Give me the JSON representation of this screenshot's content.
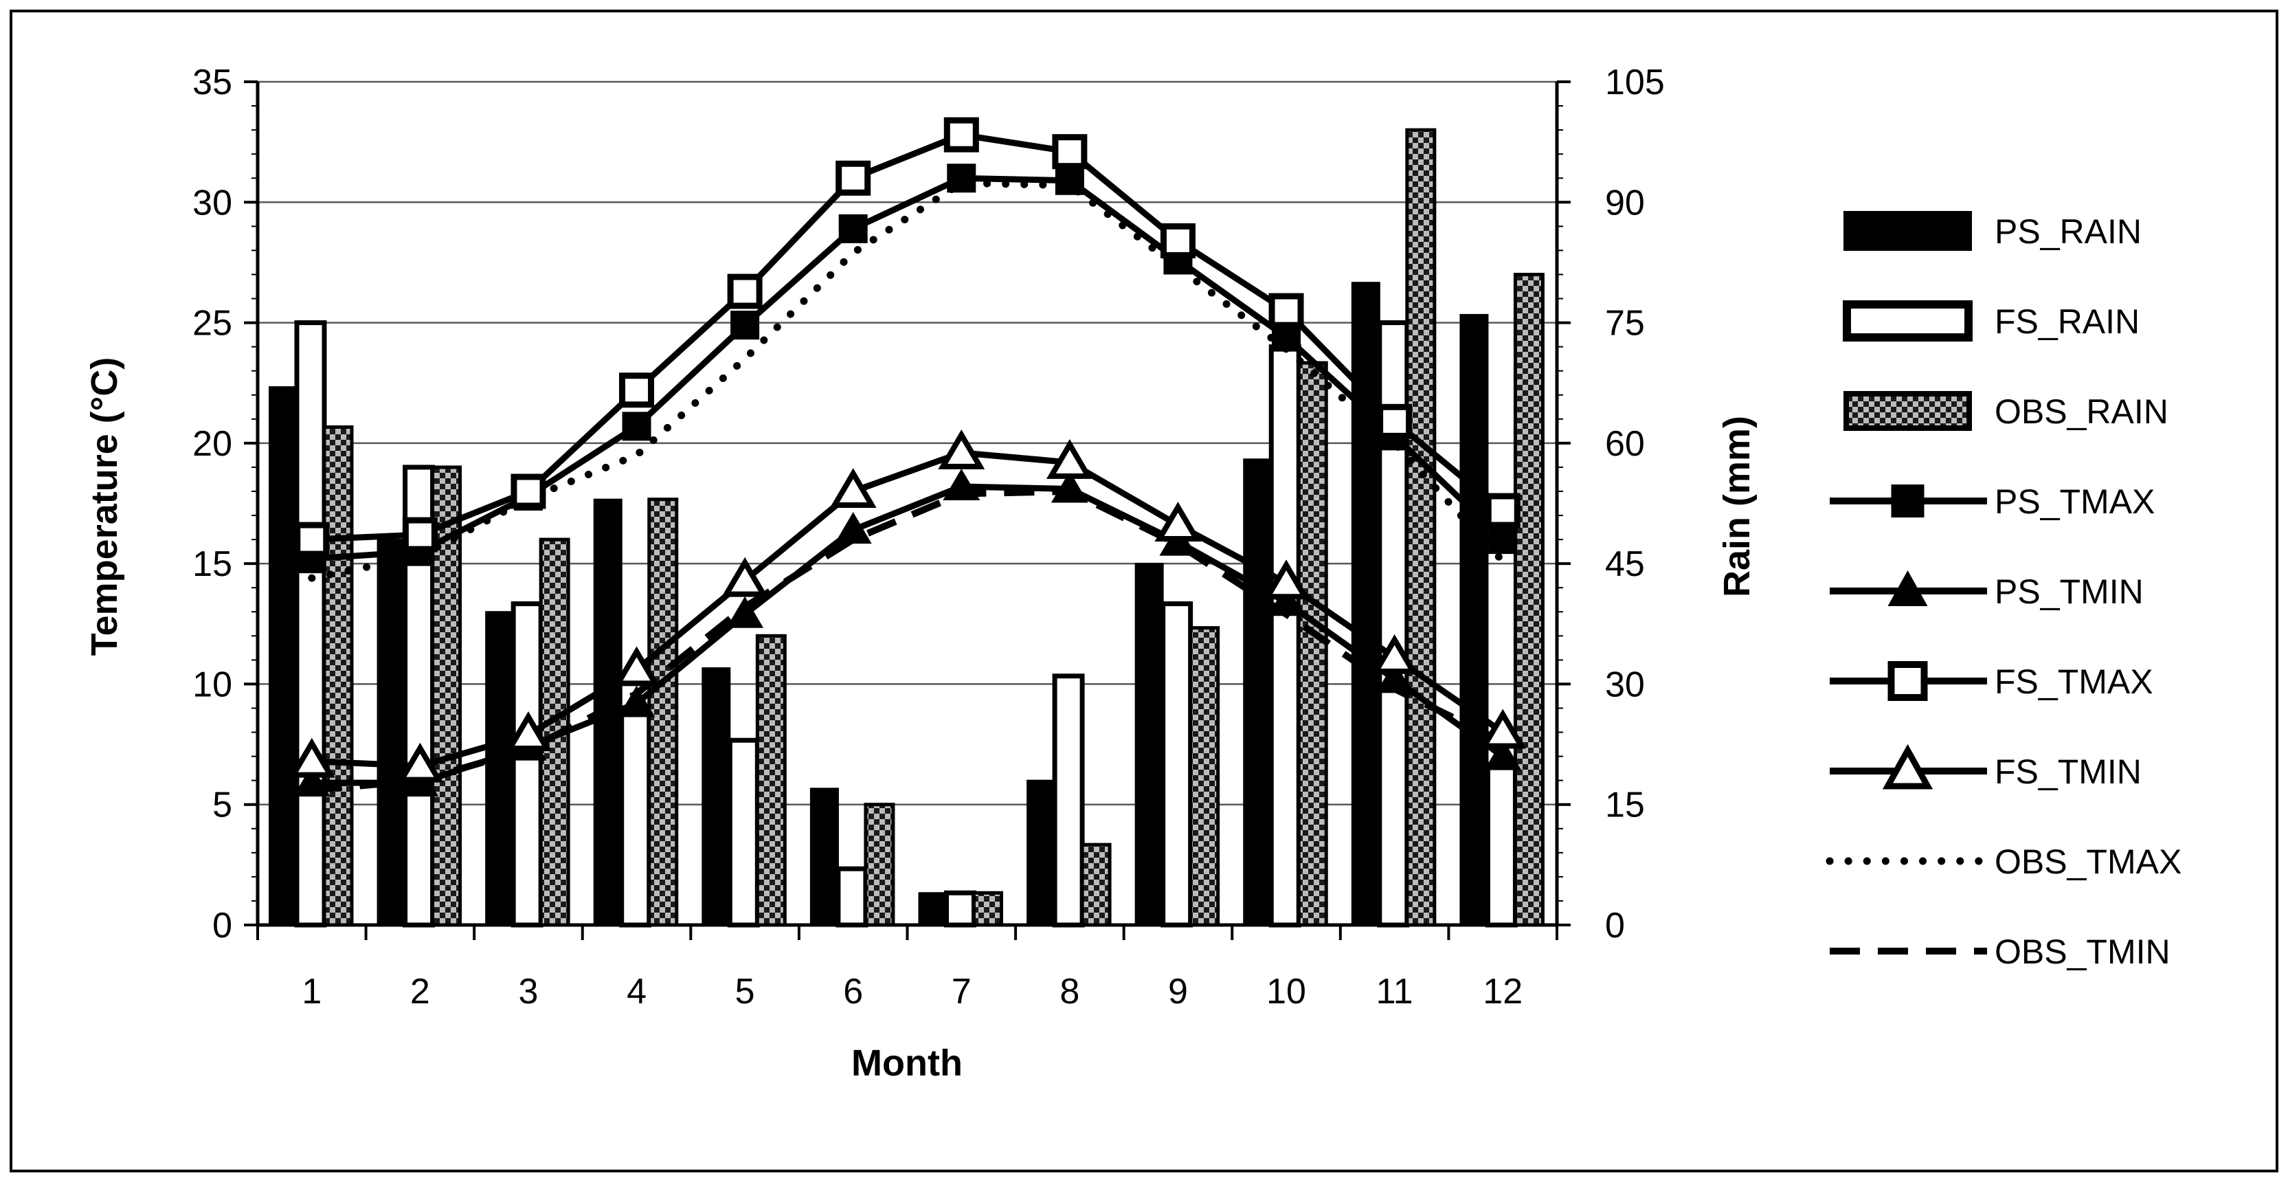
{
  "figure": {
    "xlabel": "Month",
    "ylabel_left": "Temperature (°C)",
    "ylabel_right": "Rain (mm)"
  },
  "chart_data": {
    "type": "bar+line",
    "categories": [
      "1",
      "2",
      "3",
      "4",
      "5",
      "6",
      "7",
      "8",
      "9",
      "10",
      "11",
      "12"
    ],
    "axes": {
      "left": {
        "label": "Temperature (°C)",
        "min": 0,
        "max": 35,
        "ticks": [
          35,
          30,
          25,
          20,
          15,
          10,
          5,
          0
        ]
      },
      "right": {
        "label": "Rain (mm)",
        "min": 0,
        "max": 105,
        "ticks": [
          105,
          90,
          75,
          60,
          45,
          30,
          15,
          0
        ]
      },
      "x": {
        "label": "Month"
      }
    },
    "grid": "horizontal",
    "legend_position": "right",
    "bar_series": [
      {
        "name": "PS_RAIN",
        "axis": "right",
        "style": "solid-black",
        "values": [
          67,
          48,
          39,
          53,
          32,
          17,
          4,
          18,
          45,
          58,
          80,
          76
        ]
      },
      {
        "name": "FS_RAIN",
        "axis": "right",
        "style": "open-white",
        "values": [
          75,
          57,
          40,
          27,
          23,
          7,
          4,
          31,
          40,
          72,
          75,
          20
        ]
      },
      {
        "name": "OBS_RAIN",
        "axis": "right",
        "style": "checker-gray",
        "values": [
          62,
          57,
          48,
          53,
          36,
          15,
          4,
          10,
          37,
          70,
          99,
          81
        ]
      }
    ],
    "line_series": [
      {
        "name": "OBS_TMAX",
        "axis": "left",
        "line": "dotted",
        "marker": "none",
        "values": [
          14.4,
          15.3,
          17.7,
          19.5,
          23.5,
          27.9,
          30.8,
          30.7,
          27.3,
          23.9,
          20.0,
          15.1
        ]
      },
      {
        "name": "OBS_TMIN",
        "axis": "left",
        "line": "dashed",
        "marker": "none",
        "values": [
          5.6,
          6.0,
          7.3,
          9.6,
          13.2,
          16.0,
          17.9,
          18.0,
          15.8,
          12.9,
          9.8,
          7.6
        ]
      },
      {
        "name": "PS_TMAX",
        "axis": "left",
        "line": "solid",
        "marker": "square-filled",
        "values": [
          15.2,
          15.5,
          17.8,
          20.7,
          24.9,
          28.9,
          31.0,
          30.9,
          27.6,
          24.4,
          20.3,
          16.0
        ]
      },
      {
        "name": "PS_TMIN",
        "axis": "left",
        "line": "solid",
        "marker": "triangle-filled",
        "values": [
          5.9,
          5.9,
          7.4,
          9.2,
          12.9,
          16.4,
          18.2,
          18.1,
          15.9,
          13.4,
          10.2,
          7.0
        ]
      },
      {
        "name": "FS_TMAX",
        "axis": "left",
        "line": "solid",
        "marker": "square-open",
        "values": [
          16.0,
          16.2,
          18.0,
          22.2,
          26.3,
          31.0,
          32.8,
          32.1,
          28.4,
          25.5,
          20.9,
          17.2
        ]
      },
      {
        "name": "FS_TMIN",
        "axis": "left",
        "line": "solid",
        "marker": "triangle-open",
        "values": [
          6.8,
          6.6,
          7.9,
          10.6,
          14.3,
          18.0,
          19.6,
          19.2,
          16.6,
          14.2,
          11.1,
          8.0
        ]
      }
    ],
    "legend": [
      {
        "label": "PS_RAIN",
        "swatch": "bar-black"
      },
      {
        "label": "FS_RAIN",
        "swatch": "bar-white"
      },
      {
        "label": "OBS_RAIN",
        "swatch": "bar-checker"
      },
      {
        "label": "PS_TMAX",
        "swatch": "line-square-filled"
      },
      {
        "label": "PS_TMIN",
        "swatch": "line-triangle-filled"
      },
      {
        "label": "FS_TMAX",
        "swatch": "line-square-open"
      },
      {
        "label": "FS_TMIN",
        "swatch": "line-triangle-open"
      },
      {
        "label": "OBS_TMAX",
        "swatch": "line-dotted"
      },
      {
        "label": "OBS_TMIN",
        "swatch": "line-dashed"
      }
    ],
    "colors": {
      "ink": "#000000",
      "paper": "#ffffff",
      "gridline": "#595959"
    }
  }
}
